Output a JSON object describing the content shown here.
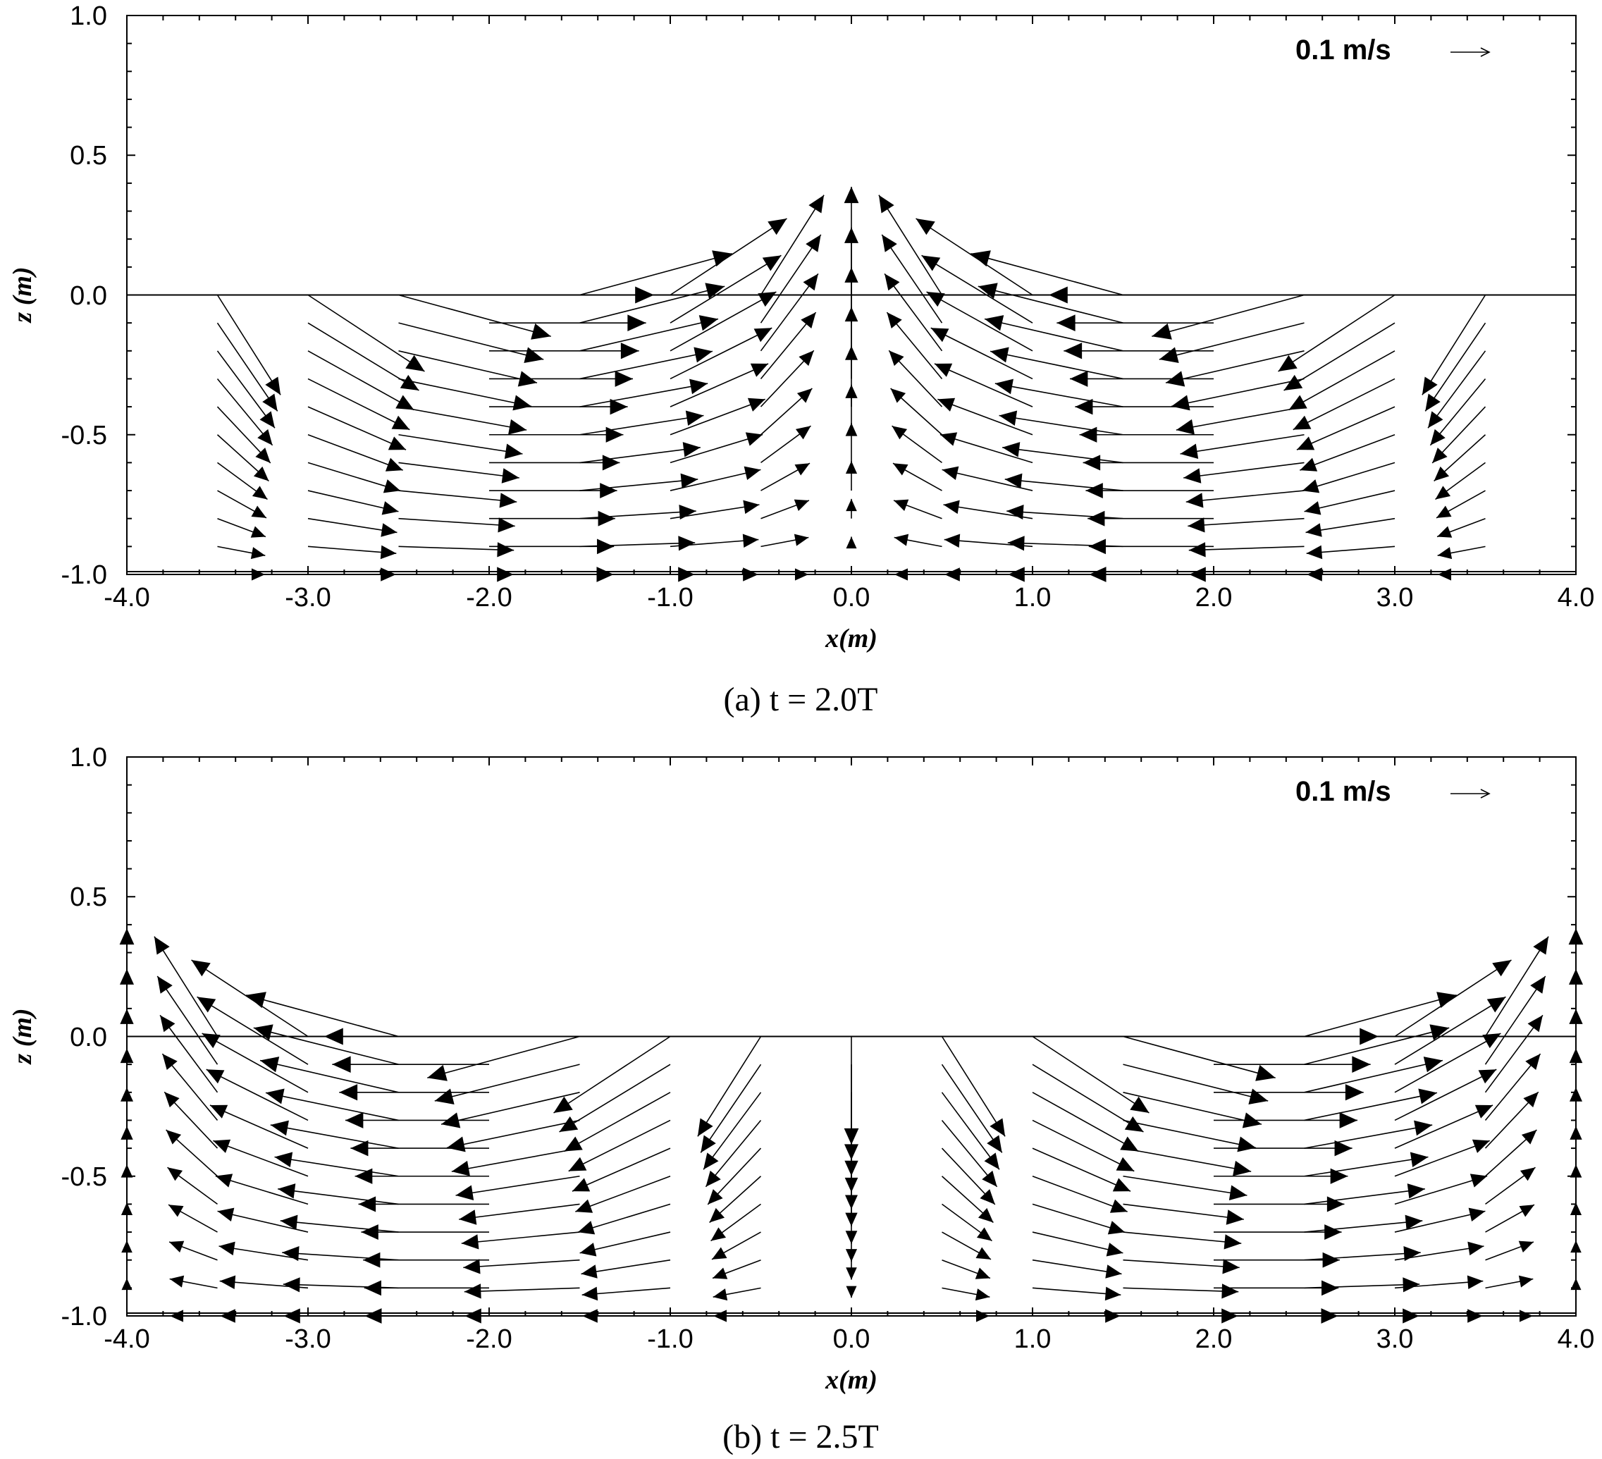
{
  "chart_data": [
    {
      "type": "quiver",
      "caption": "(a)  t = 2.0T",
      "xlabel": "x(m)",
      "ylabel": "z (m)",
      "xlim": [
        -4.0,
        4.0
      ],
      "ylim": [
        -1.0,
        1.0
      ],
      "xticks": [
        "-4.0",
        "-3.0",
        "-2.0",
        "-1.0",
        "0.0",
        "1.0",
        "2.0",
        "3.0",
        "4.0"
      ],
      "yticks": [
        "-1.0",
        "-0.5",
        "0.0",
        "0.5",
        "1.0"
      ],
      "reference_vector": {
        "label": "0.1 m/s",
        "u": 0.1,
        "w": 0.0
      },
      "free_surface_z": 0.0,
      "bed_z": -1.0,
      "phase": 0.0,
      "grid_x": [
        -3.5,
        -3.0,
        -2.5,
        -2.0,
        -1.5,
        -1.0,
        -0.5,
        0.0,
        0.5,
        1.0,
        1.5,
        2.0,
        2.5,
        3.0,
        3.5
      ],
      "grid_z": [
        0.0,
        -0.1,
        -0.2,
        -0.3,
        -0.4,
        -0.5,
        -0.6,
        -0.7,
        -0.8,
        -0.9,
        -1.0
      ]
    },
    {
      "type": "quiver",
      "caption": "(b)  t = 2.5T",
      "xlabel": "x(m)",
      "ylabel": "z (m)",
      "xlim": [
        -4.0,
        4.0
      ],
      "ylim": [
        -1.0,
        1.0
      ],
      "xticks": [
        "-4.0",
        "-3.0",
        "-2.0",
        "-1.0",
        "0.0",
        "1.0",
        "2.0",
        "3.0",
        "4.0"
      ],
      "yticks": [
        "-1.0",
        "-0.5",
        "0.0",
        "0.5",
        "1.0"
      ],
      "reference_vector": {
        "label": "0.1 m/s",
        "u": 0.1,
        "w": 0.0
      },
      "free_surface_z": 0.0,
      "bed_z": -1.0,
      "phase": 3.1416,
      "grid_x": [
        -4.0,
        -3.5,
        -3.0,
        -2.5,
        -2.0,
        -1.5,
        -1.0,
        -0.5,
        0.0,
        0.5,
        1.0,
        1.5,
        2.0,
        2.5,
        3.0,
        3.5,
        4.0
      ],
      "grid_z": [
        0.0,
        -0.1,
        -0.2,
        -0.3,
        -0.4,
        -0.5,
        -0.6,
        -0.7,
        -0.8,
        -0.9,
        -1.0
      ]
    }
  ]
}
